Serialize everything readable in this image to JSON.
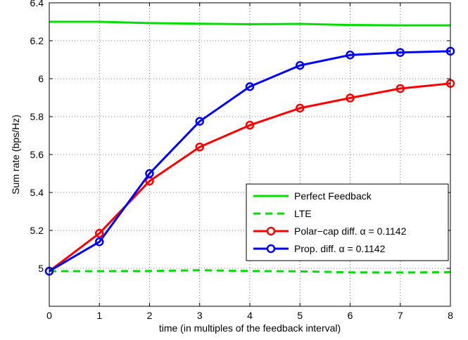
{
  "chart_data": {
    "type": "line",
    "xlabel": "time (in multiples of the feedback interval)",
    "ylabel": "Sum rate (bps/Hz)",
    "xlim": [
      0,
      8
    ],
    "ylim": [
      4.8,
      6.4
    ],
    "xticks": [
      "0",
      "1",
      "2",
      "3",
      "4",
      "5",
      "6",
      "7",
      "8"
    ],
    "yticks": [
      "5",
      "5.2",
      "5.4",
      "5.6",
      "5.8",
      "6",
      "6.2",
      "6.4"
    ],
    "grid": true,
    "legend_position": "bottom-right",
    "x": [
      0,
      1,
      2,
      3,
      4,
      5,
      6,
      7,
      8
    ],
    "series": [
      {
        "name": "Perfect Feedback",
        "color": "#00e000",
        "style": "solid",
        "marker": "none",
        "values": [
          6.3,
          6.3,
          6.293,
          6.29,
          6.287,
          6.289,
          6.283,
          6.281,
          6.281
        ]
      },
      {
        "name": "LTE",
        "color": "#00e000",
        "style": "dashed",
        "marker": "none",
        "values": [
          4.985,
          4.985,
          4.986,
          4.99,
          4.986,
          4.984,
          4.979,
          4.978,
          4.98
        ]
      },
      {
        "name": "Polar−cap diff. α = 0.1142",
        "color": "#ff0000",
        "style": "solid",
        "marker": "circle",
        "values": [
          4.985,
          5.185,
          5.46,
          5.64,
          5.755,
          5.845,
          5.898,
          5.948,
          5.975
        ]
      },
      {
        "name": "Prop. diff. α = 0.1142",
        "color": "#0000ff",
        "style": "solid",
        "marker": "circle",
        "values": [
          4.985,
          5.14,
          5.5,
          5.775,
          5.958,
          6.07,
          6.125,
          6.138,
          6.145
        ]
      }
    ]
  }
}
